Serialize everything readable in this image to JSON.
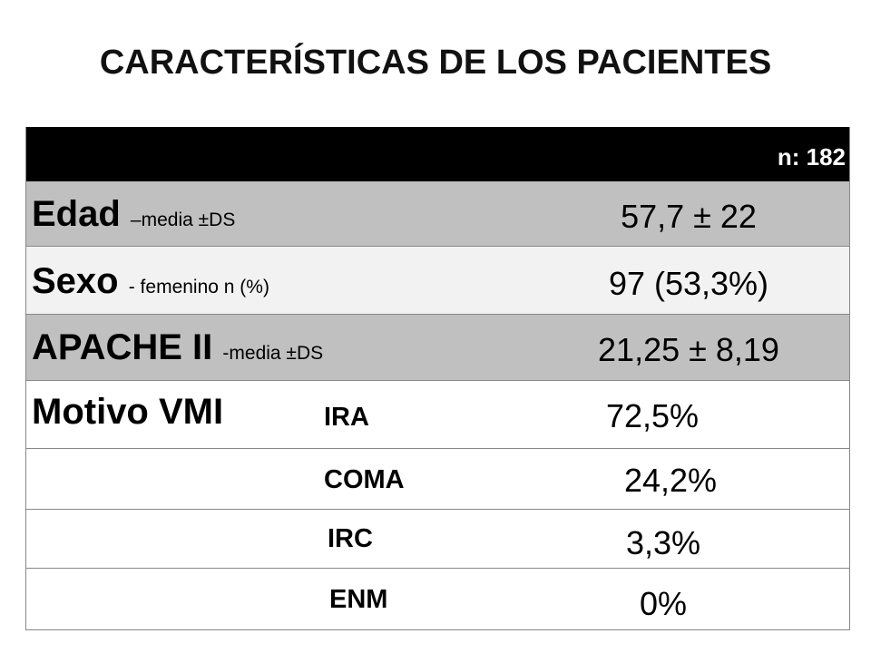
{
  "title": "CARACTERÍSTICAS DE LOS PACIENTES",
  "table": {
    "header": "n: 182",
    "rows": [
      {
        "label": "Edad",
        "note": "–media ±DS",
        "value": "57,7 ± 22"
      },
      {
        "label": "Sexo",
        "note": "- femenino n (%)",
        "value": "97 (53,3%)"
      },
      {
        "label": "APACHE II",
        "note": "-media ±DS",
        "value": "21,25 ± 8,19"
      },
      {
        "label": "Motivo VMI",
        "note": "IRA",
        "value": "72,5%"
      },
      {
        "note": "COMA",
        "value": "24,2%"
      },
      {
        "note": "IRC",
        "value": "3,3%"
      },
      {
        "note": "ENM",
        "value": "0%"
      }
    ]
  }
}
